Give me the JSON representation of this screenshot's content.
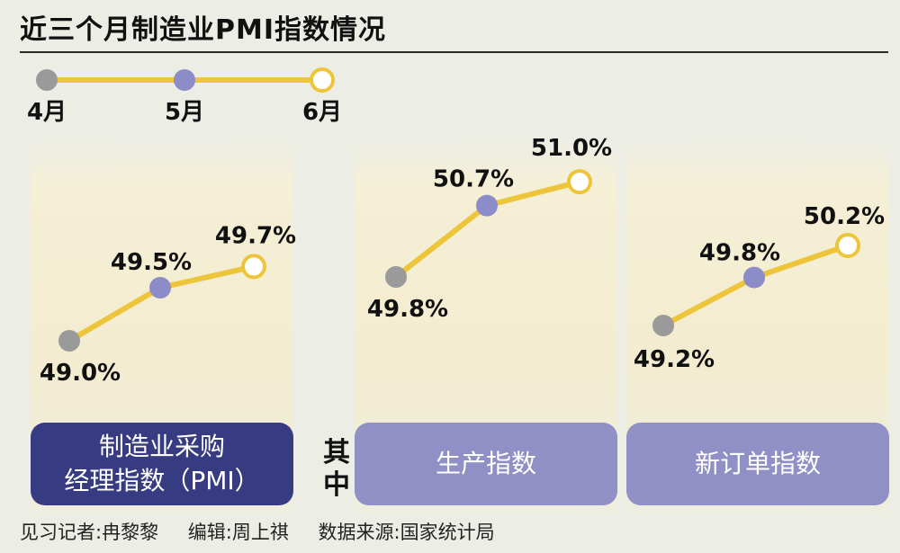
{
  "title": "近三个月制造业PMI指数情况",
  "legend": {
    "months": [
      "4月",
      "5月",
      "6月"
    ],
    "colors": [
      "#9a9a9a",
      "#8c8cc8",
      "#ffffff"
    ]
  },
  "colors": {
    "line": "#ecc53a",
    "marker_gray": "#9a9a9a",
    "marker_purple": "#8c8cc8",
    "marker_open": "#ffffff",
    "badge_dark": "#363b82",
    "badge_light": "#9090c6"
  },
  "qizhong": "其中",
  "footer": {
    "reporter": "见习记者:冉黎黎",
    "editor": "编辑:周上祺",
    "source": "数据来源:国家统计局"
  },
  "chart_data": [
    {
      "type": "line",
      "title": "制造业采购经理指数（PMI）",
      "title_lines": [
        "制造业采购",
        "经理指数（PMI）"
      ],
      "x": [
        "4月",
        "5月",
        "6月"
      ],
      "values": [
        49.0,
        49.5,
        49.7
      ],
      "labels": [
        "49.0%",
        "49.5%",
        "49.7%"
      ]
    },
    {
      "type": "line",
      "title": "生产指数",
      "x": [
        "4月",
        "5月",
        "6月"
      ],
      "values": [
        49.8,
        50.7,
        51.0
      ],
      "labels": [
        "49.8%",
        "50.7%",
        "51.0%"
      ]
    },
    {
      "type": "line",
      "title": "新订单指数",
      "x": [
        "4月",
        "5月",
        "6月"
      ],
      "values": [
        49.2,
        49.8,
        50.2
      ],
      "labels": [
        "49.2%",
        "49.8%",
        "50.2%"
      ]
    }
  ]
}
